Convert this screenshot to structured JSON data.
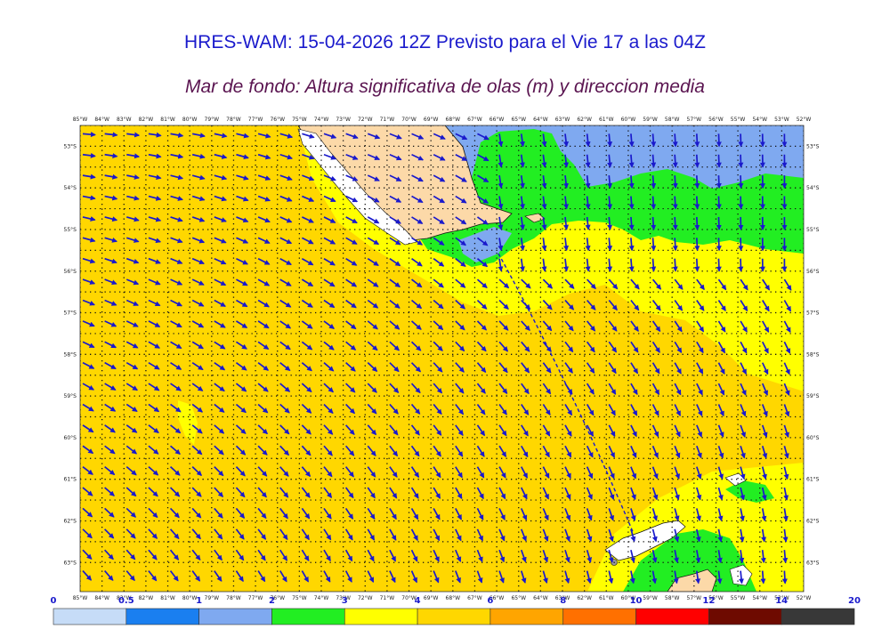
{
  "title": "HRES-WAM: 15-04-2026 12Z Previsto para el Vie 17 a las 04Z",
  "subtitle": "Mar de fondo: Altura significativa de olas (m) y direccion media",
  "map": {
    "lon_labels": [
      "85°W",
      "84°W",
      "83°W",
      "82°W",
      "81°W",
      "80°W",
      "79°W",
      "78°W",
      "77°W",
      "76°W",
      "75°W",
      "74°W",
      "73°W",
      "72°W",
      "71°W",
      "70°W",
      "69°W",
      "68°W",
      "67°W",
      "66°W",
      "65°W",
      "64°W",
      "63°W",
      "62°W",
      "61°W",
      "60°W",
      "59°W",
      "58°W",
      "57°W",
      "56°W",
      "55°W",
      "54°W",
      "53°W",
      "52°W"
    ],
    "lat_labels": [
      "53°S",
      "54°S",
      "55°S",
      "56°S",
      "57°S",
      "58°S",
      "59°S",
      "60°S",
      "61°S",
      "62°S",
      "63°S"
    ],
    "lon_range": [
      -85,
      -52
    ],
    "lat_range": [
      -52.5,
      -63.7
    ],
    "arrow_color": "#1a1acc",
    "land_color": "#fcd9a8",
    "colors": {
      "yellow_gold": "#ffd700",
      "yellow": "#ffff00",
      "green": "#22ee22",
      "light_blue": "#7fa9f0"
    }
  },
  "colorbar": {
    "labels": [
      "0",
      "0.5",
      "1",
      "2",
      "3",
      "4",
      "6",
      "8",
      "10",
      "12",
      "14",
      "20"
    ],
    "colors": [
      "#c6dcf7",
      "#1a7ff0",
      "#7fa9f0",
      "#22ee22",
      "#ffff00",
      "#ffd700",
      "#ffa500",
      "#ff7000",
      "#ff0000",
      "#6e0a00",
      "#383838"
    ]
  }
}
